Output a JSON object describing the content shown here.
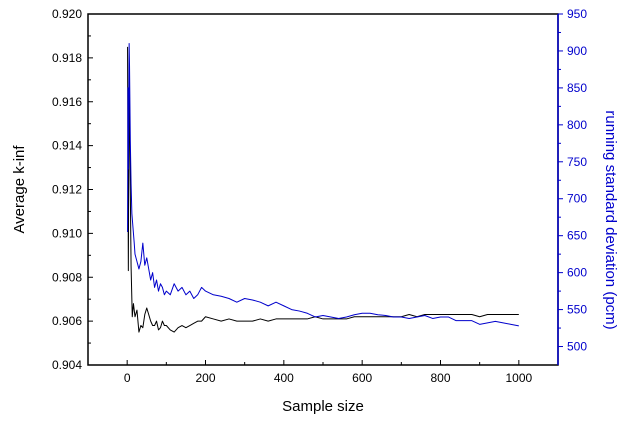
{
  "chart_data": {
    "type": "line",
    "title": "",
    "xlabel": "Sample size",
    "ylabel": "Average k-inf",
    "ylabel_right": "running standard deviation (pcm)",
    "xlim": [
      -100,
      1100
    ],
    "ylim": [
      0.904,
      0.92
    ],
    "ylim_right": [
      475,
      950
    ],
    "x_ticks": [
      0,
      200,
      400,
      600,
      800,
      1000
    ],
    "y_ticks": [
      0.904,
      0.906,
      0.908,
      0.91,
      0.912,
      0.914,
      0.916,
      0.918,
      0.92
    ],
    "y_ticks_right": [
      500,
      550,
      600,
      650,
      700,
      750,
      800,
      850,
      900,
      950
    ],
    "grid": false,
    "colors": {
      "left_axis": "#000000",
      "right_axis": "#0000cc"
    },
    "series": [
      {
        "axis": "left",
        "color": "#000000",
        "x": [
          1,
          3,
          5,
          8,
          10,
          13,
          16,
          20,
          25,
          30,
          35,
          40,
          45,
          50,
          55,
          60,
          65,
          70,
          75,
          80,
          85,
          90,
          95,
          100,
          110,
          120,
          130,
          140,
          150,
          160,
          170,
          180,
          190,
          200,
          220,
          240,
          260,
          280,
          300,
          320,
          340,
          360,
          380,
          400,
          420,
          440,
          460,
          480,
          500,
          520,
          540,
          560,
          580,
          600,
          620,
          640,
          660,
          680,
          700,
          720,
          740,
          760,
          780,
          800,
          820,
          840,
          860,
          880,
          900,
          920,
          940,
          960,
          980,
          1000
        ],
        "y": [
          0.9185,
          0.9083,
          0.9175,
          0.912,
          0.9085,
          0.9062,
          0.9068,
          0.9062,
          0.9065,
          0.9055,
          0.9058,
          0.9057,
          0.9063,
          0.9066,
          0.9063,
          0.906,
          0.9058,
          0.9058,
          0.906,
          0.9056,
          0.9057,
          0.906,
          0.9058,
          0.9058,
          0.9056,
          0.9055,
          0.9057,
          0.9058,
          0.9057,
          0.9058,
          0.9059,
          0.906,
          0.906,
          0.9062,
          0.9061,
          0.906,
          0.9061,
          0.906,
          0.906,
          0.906,
          0.9061,
          0.906,
          0.9061,
          0.9061,
          0.9061,
          0.9061,
          0.9061,
          0.9062,
          0.9061,
          0.9061,
          0.9061,
          0.9061,
          0.9062,
          0.9062,
          0.9062,
          0.9062,
          0.9062,
          0.9062,
          0.9062,
          0.9063,
          0.9062,
          0.9063,
          0.9063,
          0.9063,
          0.9063,
          0.9063,
          0.9063,
          0.9063,
          0.9062,
          0.9063,
          0.9063,
          0.9063,
          0.9063,
          0.9063
        ]
      },
      {
        "axis": "right",
        "color": "#0000cc",
        "x": [
          1,
          2,
          3,
          5,
          6,
          8,
          10,
          12,
          15,
          18,
          20,
          25,
          30,
          35,
          40,
          45,
          50,
          55,
          60,
          65,
          70,
          75,
          80,
          85,
          90,
          95,
          100,
          110,
          120,
          130,
          140,
          150,
          160,
          170,
          180,
          190,
          200,
          220,
          240,
          260,
          280,
          300,
          320,
          340,
          360,
          380,
          400,
          420,
          440,
          460,
          480,
          500,
          520,
          540,
          560,
          580,
          600,
          620,
          640,
          660,
          680,
          700,
          720,
          740,
          760,
          780,
          800,
          820,
          840,
          860,
          880,
          900,
          920,
          940,
          960,
          980,
          1000
        ],
        "y": [
          655,
          850,
          740,
          910,
          880,
          780,
          720,
          680,
          660,
          640,
          625,
          615,
          605,
          615,
          640,
          610,
          620,
          605,
          590,
          600,
          580,
          590,
          575,
          585,
          580,
          570,
          575,
          570,
          585,
          575,
          580,
          570,
          575,
          565,
          570,
          580,
          575,
          570,
          568,
          565,
          560,
          565,
          563,
          560,
          555,
          560,
          555,
          550,
          548,
          545,
          540,
          542,
          540,
          538,
          540,
          543,
          545,
          545,
          543,
          542,
          540,
          540,
          538,
          540,
          542,
          538,
          540,
          540,
          535,
          535,
          535,
          530,
          532,
          534,
          532,
          530,
          528
        ]
      }
    ]
  }
}
